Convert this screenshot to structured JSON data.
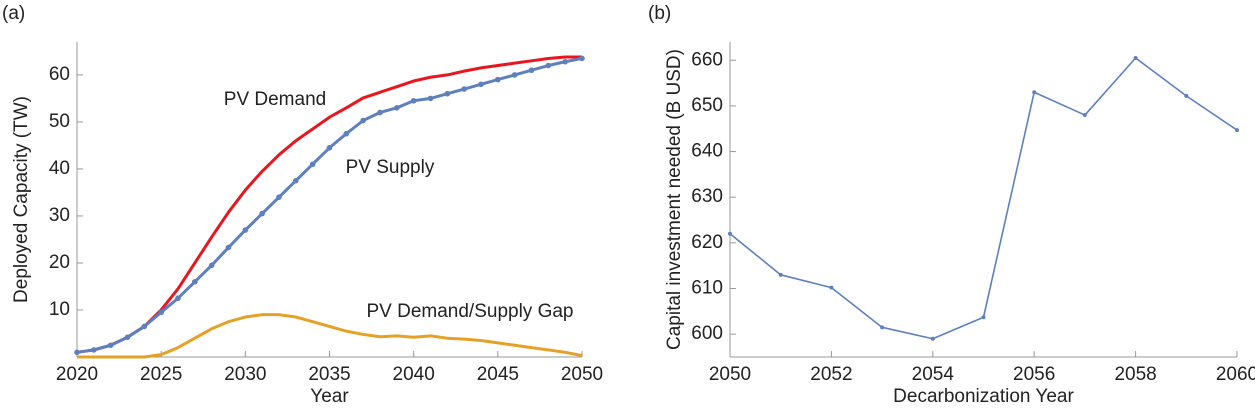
{
  "chart_data": [
    {
      "type": "line",
      "panel": "(a)",
      "xlabel": "Year",
      "ylabel": "Deployed Capacity (TW)",
      "x": [
        2020,
        2021,
        2022,
        2023,
        2024,
        2025,
        2026,
        2027,
        2028,
        2029,
        2030,
        2031,
        2032,
        2033,
        2034,
        2035,
        2036,
        2037,
        2038,
        2039,
        2040,
        2041,
        2042,
        2043,
        2044,
        2045,
        2046,
        2047,
        2048,
        2049,
        2050
      ],
      "xlim": [
        2020,
        2050
      ],
      "xticks": [
        2020,
        2025,
        2030,
        2035,
        2040,
        2045,
        2050
      ],
      "ylim": [
        0,
        67
      ],
      "yticks": [
        10,
        20,
        30,
        40,
        50,
        60
      ],
      "annotations": [
        "PV Demand",
        "PV Supply",
        "PV Demand/Supply Gap"
      ],
      "series": [
        {
          "color": "#e8161e",
          "markers": false,
          "values": [
            1,
            1.5,
            2.5,
            4.2,
            6.5,
            10,
            14.5,
            20,
            25.5,
            30.8,
            35.5,
            39.5,
            43,
            46,
            48.5,
            51,
            53,
            55.1,
            56.3,
            57.5,
            58.7,
            59.5,
            60,
            60.8,
            61.5,
            62,
            62.5,
            63,
            63.5,
            63.8,
            63.8
          ]
        },
        {
          "color": "#5e80bf",
          "markers": true,
          "values": [
            1,
            1.5,
            2.5,
            4.2,
            6.5,
            9.5,
            12.5,
            16,
            19.5,
            23.3,
            27,
            30.5,
            34,
            37.5,
            41,
            44.5,
            47.5,
            50.3,
            52,
            53,
            54.5,
            55,
            56,
            57,
            58,
            59,
            60,
            61,
            62,
            62.8,
            63.5
          ]
        },
        {
          "color": "#e6a125",
          "markers": false,
          "values": [
            0,
            0,
            0,
            0,
            0,
            0.5,
            2,
            4,
            6,
            7.5,
            8.5,
            9,
            9,
            8.5,
            7.5,
            6.5,
            5.5,
            4.8,
            4.3,
            4.5,
            4.2,
            4.5,
            4,
            3.8,
            3.5,
            3,
            2.5,
            2,
            1.5,
            1,
            0.3
          ]
        }
      ]
    },
    {
      "type": "line",
      "panel": "(b)",
      "xlabel": "Decarbonization Year",
      "ylabel": "Capital investment needed (B USD)",
      "x": [
        2050,
        2051,
        2052,
        2053,
        2054,
        2055,
        2056,
        2057,
        2058,
        2059,
        2060
      ],
      "xlim": [
        2050,
        2060
      ],
      "xticks": [
        2050,
        2052,
        2054,
        2056,
        2058,
        2060
      ],
      "ylim": [
        595,
        664
      ],
      "yticks": [
        600,
        610,
        620,
        630,
        640,
        650,
        660
      ],
      "annotations": [],
      "series": [
        {
          "color": "#5e80bf",
          "markers": true,
          "values": [
            622,
            613,
            610.2,
            601.5,
            599,
            603.7,
            653,
            648,
            660.5,
            652.2,
            644.7
          ]
        }
      ]
    }
  ]
}
